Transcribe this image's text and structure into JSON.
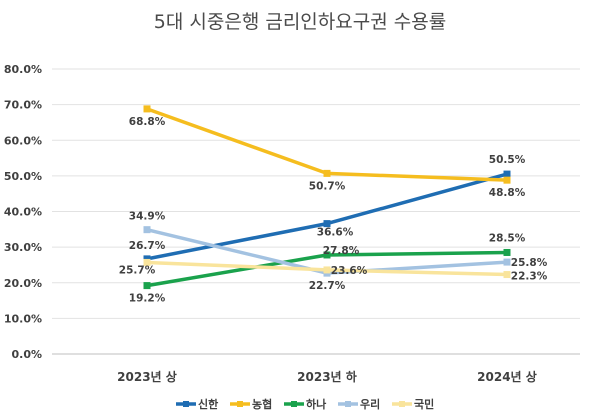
{
  "chart_data": {
    "type": "line",
    "title": "5대 시중은행 금리인하요구권 수용률",
    "categories": [
      "2023년 상",
      "2023년 하",
      "2024년 상"
    ],
    "ylim": [
      0,
      80
    ],
    "ytick_labels": [
      "0.0%",
      "10.0%",
      "20.0%",
      "30.0%",
      "40.0%",
      "50.0%",
      "60.0%",
      "70.0%",
      "80.0%"
    ],
    "grid": true,
    "legend_position": "bottom",
    "series": [
      {
        "name": "신한",
        "color": "#1f6db3",
        "values": [
          26.7,
          36.6,
          50.5
        ],
        "labels": [
          "26.7%",
          "36.6%",
          "50.5%"
        ]
      },
      {
        "name": "농협",
        "color": "#f5bd1f",
        "values": [
          68.8,
          50.7,
          48.8
        ],
        "labels": [
          "68.8%",
          "50.7%",
          "48.8%"
        ]
      },
      {
        "name": "하나",
        "color": "#1aa24c",
        "values": [
          19.2,
          27.8,
          28.5
        ],
        "labels": [
          "19.2%",
          "27.8%",
          "28.5%"
        ]
      },
      {
        "name": "우리",
        "color": "#a3c2e1",
        "values": [
          34.9,
          22.7,
          25.8
        ],
        "labels": [
          "34.9%",
          "22.7%",
          "25.8%"
        ]
      },
      {
        "name": "국민",
        "color": "#f9e49c",
        "values": [
          25.7,
          23.6,
          22.3
        ],
        "labels": [
          "25.7%",
          "23.6%",
          "22.3%"
        ]
      }
    ]
  }
}
